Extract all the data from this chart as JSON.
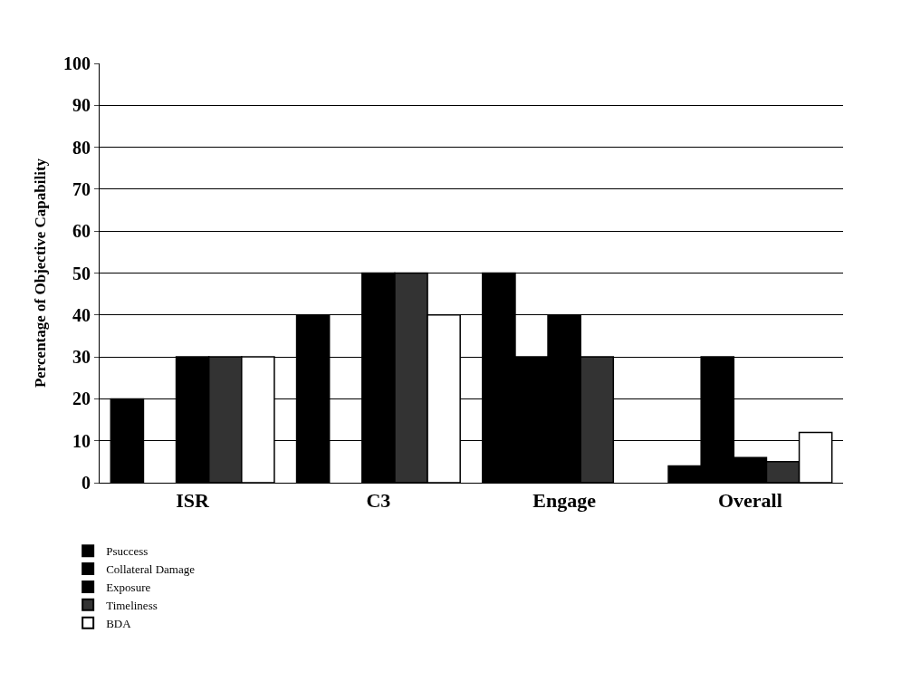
{
  "chart_data": {
    "type": "bar",
    "ylabel": "Percentage of Objective Capability",
    "categories": [
      "ISR",
      "C3",
      "Engage",
      "Overall"
    ],
    "series": [
      {
        "name": "Psuccess",
        "color": "#000000",
        "values": [
          20,
          40,
          50,
          4
        ]
      },
      {
        "name": "Collateral Damage",
        "color": "#000000",
        "values": [
          0,
          0,
          30,
          30
        ]
      },
      {
        "name": "Exposure",
        "color": "#000000",
        "values": [
          30,
          50,
          40,
          6
        ]
      },
      {
        "name": "Timeliness",
        "color": "#333333",
        "values": [
          30,
          50,
          30,
          5
        ]
      },
      {
        "name": "BDA",
        "color": "#ffffff",
        "values": [
          30,
          40,
          0,
          12
        ]
      }
    ],
    "ylim": [
      0,
      100
    ],
    "yticks": [
      0,
      10,
      20,
      30,
      40,
      50,
      60,
      70,
      80,
      90,
      100
    ],
    "grid": "y",
    "legend": "bottom left"
  }
}
